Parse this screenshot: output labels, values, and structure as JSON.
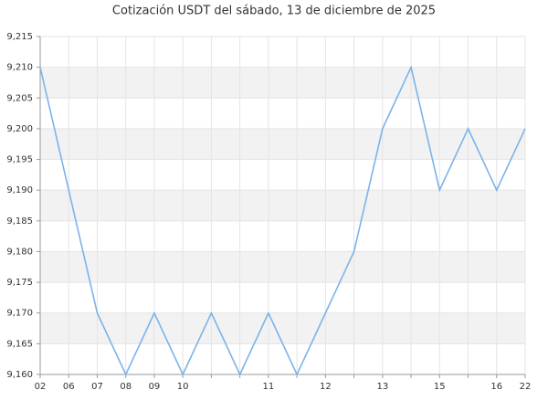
{
  "chart_data": {
    "type": "line",
    "title": "Cotización USDT del sábado, 13 de diciembre de 2025",
    "categories": [
      "02",
      "06",
      "07",
      "08",
      "09",
      "10",
      null,
      null,
      "11",
      null,
      "12",
      null,
      "13",
      null,
      "15",
      null,
      "16",
      "22"
    ],
    "values": [
      9.21,
      9.19,
      9.17,
      9.16,
      9.17,
      9.16,
      9.17,
      9.16,
      9.17,
      9.16,
      9.17,
      9.18,
      9.2,
      9.21,
      9.19,
      9.2,
      9.19,
      9.2
    ],
    "color": "#7ab4ea",
    "ylim": [
      9.16,
      9.215
    ],
    "yticks": [
      {
        "value": 9.16,
        "label": "9,160"
      },
      {
        "value": 9.165,
        "label": "9,165"
      },
      {
        "value": 9.17,
        "label": "9,170"
      },
      {
        "value": 9.175,
        "label": "9,175"
      },
      {
        "value": 9.18,
        "label": "9,180"
      },
      {
        "value": 9.185,
        "label": "9,185"
      },
      {
        "value": 9.19,
        "label": "9,190"
      },
      {
        "value": 9.195,
        "label": "9,195"
      },
      {
        "value": 9.2,
        "label": "9,200"
      },
      {
        "value": 9.205,
        "label": "9,205"
      },
      {
        "value": 9.21,
        "label": "9,210"
      },
      {
        "value": 9.215,
        "label": "9,215"
      }
    ],
    "grid": true
  }
}
